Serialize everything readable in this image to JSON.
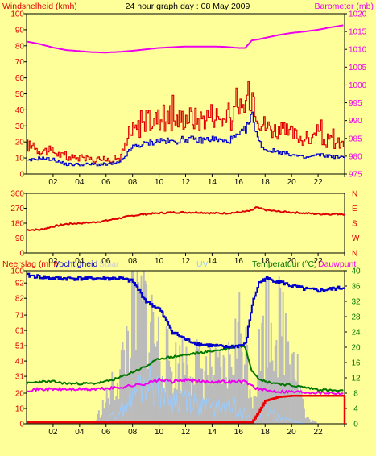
{
  "colors": {
    "background": "#ffff99",
    "wind": "#dd0000",
    "gust": "#0000cc",
    "barometer": "#ee00ee",
    "direction": "#dd0000",
    "rain_label": "#dd0000",
    "humidity": "#0000cc",
    "solar": "#bbbbbb",
    "uv": "#99ccff",
    "temperature": "#007700",
    "dewpoint": "#ee00ee",
    "rain": "#ee0000"
  },
  "chart_data": [
    {
      "type": "line",
      "title": "24 hour graph day : 08 May 2009",
      "ylabel_left": "Windsnelheid (kmh)",
      "ylabel_right": "Barometer (mb)",
      "x_ticks": [
        "02",
        "04",
        "06",
        "08",
        "10",
        "12",
        "14",
        "16",
        "18",
        "20",
        "22"
      ],
      "ylim_left": [
        0,
        100
      ],
      "y_ticks_left": [
        0,
        10,
        20,
        30,
        40,
        50,
        60,
        70,
        80,
        90,
        100
      ],
      "ylim_right": [
        975,
        1020
      ],
      "y_ticks_right": [
        975,
        980,
        985,
        990,
        995,
        1000,
        1005,
        1010,
        1015,
        1020
      ],
      "x": [
        0,
        1,
        2,
        3,
        4,
        5,
        6,
        7,
        8,
        9,
        10,
        11,
        12,
        13,
        14,
        15,
        16,
        16.5,
        17,
        17.5,
        18,
        19,
        20,
        21,
        22,
        23,
        24
      ],
      "series": [
        {
          "name": "wind",
          "axis": "left",
          "values": [
            18,
            15,
            14,
            10,
            10,
            9,
            9,
            10,
            27,
            32,
            35,
            33,
            36,
            34,
            38,
            33,
            37,
            45,
            52,
            35,
            30,
            27,
            25,
            22,
            22,
            20,
            18
          ]
        },
        {
          "name": "gust",
          "axis": "left",
          "values": [
            8,
            10,
            9,
            6,
            6,
            6,
            6,
            7,
            17,
            19,
            21,
            20,
            22,
            21,
            22,
            20,
            24,
            28,
            36,
            20,
            15,
            14,
            12,
            10,
            12,
            11,
            10
          ]
        },
        {
          "name": "barometer",
          "axis": "right",
          "values": [
            1012.2,
            1011.5,
            1010.5,
            1009.8,
            1009.5,
            1009.2,
            1009.1,
            1009.3,
            1009.6,
            1010,
            1010.4,
            1010.6,
            1010.8,
            1010.8,
            1010.8,
            1010.7,
            1010.4,
            1010.4,
            1012.5,
            1012.8,
            1013.2,
            1014,
            1014.6,
            1015,
            1015.5,
            1016.2,
            1016.8
          ]
        }
      ]
    },
    {
      "type": "line",
      "ylim": [
        0,
        360
      ],
      "y_ticks": [
        0,
        90,
        180,
        270,
        360
      ],
      "y_ticks_right": [
        "N",
        "W",
        "S",
        "E",
        "N"
      ],
      "x": [
        0,
        1,
        2,
        3,
        4,
        5,
        6,
        7,
        8,
        9,
        10,
        11,
        12,
        13,
        14,
        15,
        16,
        17,
        17.3,
        18,
        19,
        20,
        21,
        22,
        23,
        24
      ],
      "series": [
        {
          "name": "direction",
          "values": [
            140,
            140,
            160,
            175,
            180,
            185,
            195,
            210,
            225,
            235,
            240,
            245,
            245,
            245,
            240,
            240,
            245,
            255,
            275,
            260,
            250,
            245,
            240,
            235,
            235,
            235
          ]
        }
      ]
    },
    {
      "type": "area",
      "ylabel_left": "Neerslag (mm)",
      "labels_top": [
        "Vochtigheid",
        "Solar",
        "UV"
      ],
      "ylabel_right": "Temperatuur (°C)",
      "ylabel_right_2": "Dauwpunt",
      "ylim_left": [
        0,
        100
      ],
      "y_ticks_left": [
        0,
        10,
        20,
        31,
        41,
        51,
        61,
        71,
        82,
        92,
        100
      ],
      "ylim_right": [
        0,
        40
      ],
      "y_ticks_right": [
        0,
        4,
        8,
        12,
        16,
        20,
        24,
        28,
        32,
        36,
        40
      ],
      "x": [
        0,
        1,
        2,
        3,
        4,
        5,
        6,
        7,
        8,
        9,
        10,
        11,
        12,
        13,
        14,
        15,
        16,
        16.5,
        17,
        17.5,
        18,
        19,
        20,
        21,
        22,
        23,
        24
      ],
      "series": [
        {
          "name": "humidity",
          "axis": "left",
          "values": [
            97,
            96,
            95,
            95,
            95,
            95,
            95,
            95,
            93,
            80,
            75,
            60,
            55,
            52,
            51,
            50,
            51,
            52,
            78,
            92,
            95,
            93,
            90,
            88,
            87,
            88,
            89
          ]
        },
        {
          "name": "solar",
          "axis": "left",
          "values": [
            0,
            0,
            0,
            0,
            0,
            0,
            20,
            40,
            90,
            95,
            60,
            45,
            55,
            45,
            40,
            40,
            75,
            60,
            20,
            55,
            85,
            80,
            70,
            5,
            0,
            0,
            0
          ]
        },
        {
          "name": "uv",
          "axis": "left",
          "values": [
            0,
            0,
            0,
            0,
            0,
            0,
            2,
            8,
            18,
            28,
            22,
            15,
            18,
            12,
            10,
            10,
            12,
            6,
            2,
            5,
            8,
            5,
            2,
            0,
            0,
            0,
            0
          ]
        },
        {
          "name": "temperature",
          "axis": "right",
          "values": [
            10.5,
            11,
            11,
            10.5,
            10.5,
            10.5,
            11,
            12,
            13.5,
            15,
            17,
            17.5,
            18,
            18.5,
            19,
            19.5,
            20.5,
            20,
            14,
            12,
            11,
            10.5,
            10,
            9.5,
            9,
            8.7,
            8.5
          ]
        },
        {
          "name": "dewpoint",
          "axis": "right",
          "values": [
            8.8,
            9,
            9,
            9,
            9,
            9,
            9.2,
            9.5,
            10,
            10.5,
            11.5,
            11,
            11.5,
            11,
            11,
            11,
            11,
            11,
            10,
            9,
            8.7,
            8.5,
            8.4,
            8.3,
            8.2,
            8.1,
            8
          ]
        },
        {
          "name": "rain",
          "axis": "right",
          "values": [
            0.4,
            0.4,
            0.4,
            0.4,
            0.4,
            0.4,
            0.4,
            0.4,
            0.4,
            0.4,
            0.4,
            0.4,
            0.4,
            0.4,
            0.4,
            0.4,
            0.4,
            0.4,
            0.4,
            3,
            6,
            7,
            7.3,
            7.3,
            7.3,
            7.3,
            7.3
          ]
        }
      ],
      "x_ticks": [
        "02",
        "04",
        "06",
        "08",
        "10",
        "12",
        "14",
        "16",
        "18",
        "20",
        "22"
      ]
    }
  ]
}
